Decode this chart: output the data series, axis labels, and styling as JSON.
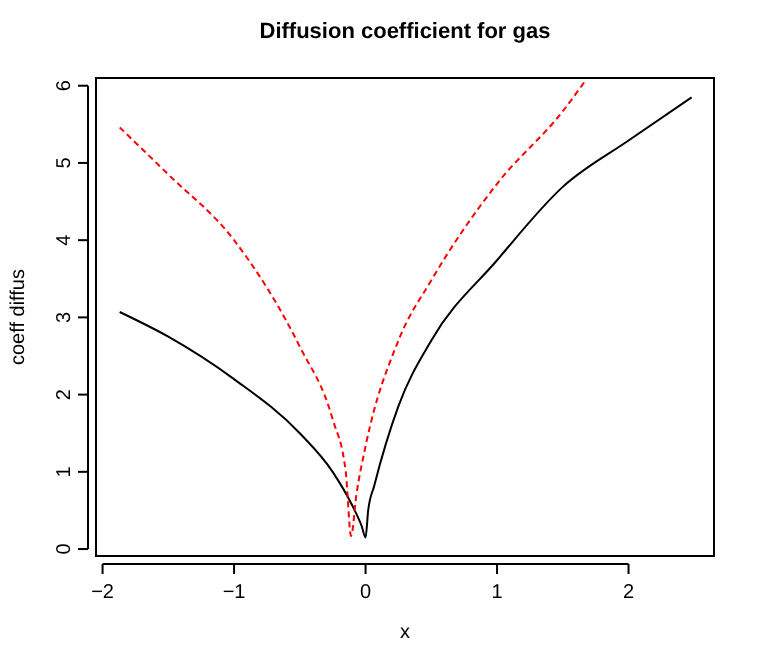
{
  "chart_data": {
    "type": "line",
    "title": "Diffusion coefficient for gas",
    "xlabel": "x",
    "ylabel": "coeff diffus",
    "xlim": [
      -2.05,
      2.65
    ],
    "ylim": [
      -0.09,
      6.1
    ],
    "xticks": [
      -2,
      -1,
      0,
      1,
      2
    ],
    "yticks": [
      0,
      1,
      2,
      3,
      4,
      5,
      6
    ],
    "grid": false,
    "series": [
      {
        "color": "#000000",
        "line_style": "solid",
        "x": [
          -1.87,
          -1.5,
          -1,
          -0.5,
          -0.25,
          -0.1,
          -0.03,
          0,
          0.02,
          0.066,
          0.25,
          0.5,
          1,
          1.5,
          2,
          2.48
        ],
        "values": [
          3.07,
          2.75,
          2.2,
          1.5,
          1.0,
          0.56,
          0.3,
          0.15,
          0.5,
          0.82,
          1.85,
          2.7,
          3.74,
          4.69,
          5.29,
          5.85
        ]
      },
      {
        "color": "#ff0000",
        "line_style": "dashed",
        "x": [
          -1.87,
          -1.5,
          -1,
          -0.5,
          -0.25,
          -0.15,
          -0.11,
          -0.07,
          0,
          0.25,
          0.5,
          1,
          1.5,
          1.67
        ],
        "values": [
          5.46,
          4.85,
          4.0,
          2.62,
          1.68,
          0.99,
          0.17,
          0.7,
          1.33,
          2.7,
          3.48,
          4.73,
          5.67,
          6.06
        ]
      }
    ]
  }
}
